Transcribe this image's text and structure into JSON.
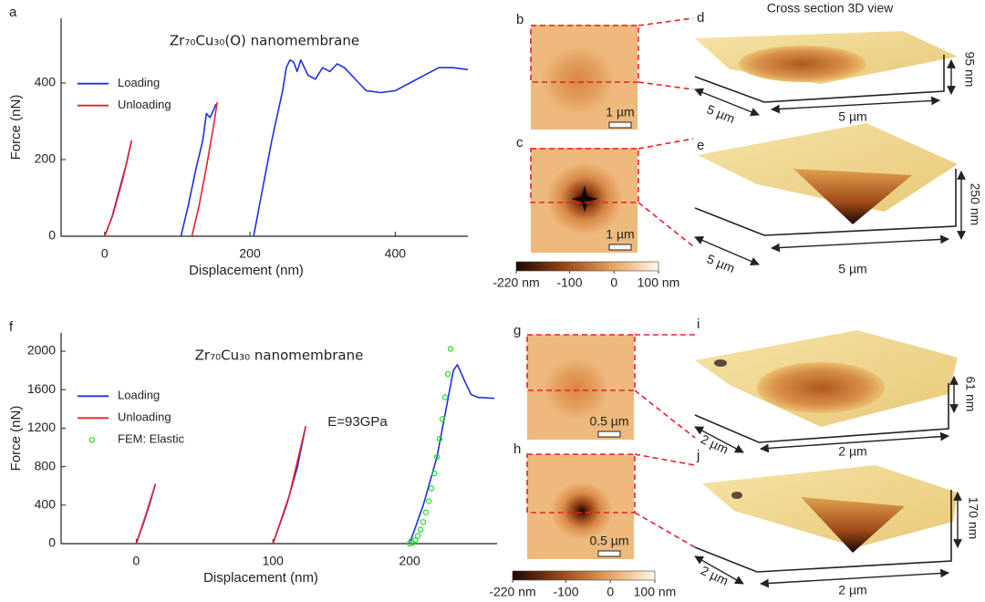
{
  "chart_data": [
    {
      "type": "line",
      "panel": "a",
      "title": "Zr₇₀Cu₃₀(O) nanomembrane",
      "xlabel": "Displacement (nm)",
      "ylabel": "Force (nN)",
      "xlim": [
        -60,
        500
      ],
      "xticks": [
        0,
        200,
        400
      ],
      "ylim": [
        0,
        569
      ],
      "yticks": [
        0,
        200,
        400
      ],
      "legend": "upper left",
      "series": [
        {
          "name": "Loading",
          "color": "#1f2fe0",
          "x": [
            0,
            10,
            20,
            30,
            37,
            null,
            105,
            115,
            125,
            135,
            140,
            145,
            150,
            153,
            null,
            205,
            215,
            230,
            245,
            250,
            255,
            260,
            265,
            270,
            280,
            290,
            300,
            310,
            320,
            330,
            340,
            350,
            360,
            380,
            400,
            420,
            440,
            460,
            480,
            500
          ],
          "values": [
            0,
            50,
            120,
            190,
            250,
            null,
            0,
            80,
            170,
            250,
            320,
            310,
            330,
            345,
            null,
            0,
            100,
            250,
            380,
            440,
            460,
            455,
            430,
            460,
            420,
            410,
            440,
            430,
            450,
            440,
            420,
            400,
            380,
            375,
            380,
            400,
            420,
            440,
            440,
            435
          ]
        },
        {
          "name": "Unloading",
          "color": "#e8202a",
          "x": [
            0,
            12,
            25,
            37,
            null,
            120,
            130,
            140,
            150,
            155
          ],
          "values": [
            0,
            60,
            150,
            250,
            null,
            0,
            80,
            180,
            290,
            350
          ]
        }
      ]
    },
    {
      "type": "line",
      "panel": "f",
      "title": "Zr₇₀Cu₃₀ nanomembrane",
      "xlabel": "Displacement (nm)",
      "ylabel": "Force (nN)",
      "annotation": "E=93GPa",
      "xlim": [
        -55,
        264
      ],
      "xticks": [
        0,
        100,
        200
      ],
      "ylim": [
        0,
        2190
      ],
      "yticks": [
        0,
        400,
        800,
        1200,
        1600,
        2000
      ],
      "legend": "upper left",
      "series": [
        {
          "name": "Loading",
          "color": "#1f2fe0",
          "x": [
            0,
            5,
            10,
            14,
            null,
            100,
            110,
            118,
            124,
            null,
            200,
            210,
            220,
            228,
            232,
            235,
            240,
            245,
            250,
            262
          ],
          "values": [
            0,
            200,
            420,
            620,
            null,
            0,
            400,
            800,
            1220,
            null,
            0,
            400,
            900,
            1500,
            1800,
            1860,
            1700,
            1550,
            1520,
            1510
          ]
        },
        {
          "name": "Unloading",
          "color": "#e8202a",
          "x": [
            0,
            7,
            14,
            null,
            100,
            112,
            124
          ],
          "values": [
            0,
            300,
            620,
            null,
            0,
            500,
            1220
          ]
        },
        {
          "name": "FEM: Elastic",
          "color": "#22dd22",
          "mode": "markers",
          "x": [
            200,
            202,
            204,
            206,
            208,
            210,
            212,
            214,
            216,
            218,
            220,
            222,
            224,
            226,
            228,
            230
          ],
          "values": [
            0,
            9,
            36,
            81,
            144,
            225,
            324,
            441,
            576,
            729,
            900,
            1089,
            1296,
            1521,
            1764,
            2025
          ]
        }
      ]
    }
  ],
  "afm_maps": [
    {
      "label": "b",
      "scale_bar": "1 µm"
    },
    {
      "label": "c",
      "scale_bar": "1 µm"
    },
    {
      "label": "g",
      "scale_bar": "0.5 µm"
    },
    {
      "label": "h",
      "scale_bar": "0.5 µm"
    }
  ],
  "colorbars": [
    {
      "lim": [
        -220,
        100
      ],
      "ticks": [
        {
          "value": -220,
          "label": "-220 nm"
        },
        -100,
        0,
        {
          "value": 100,
          "label": "100 nm"
        }
      ]
    },
    {
      "lim": [
        -220,
        100
      ],
      "ticks": [
        {
          "value": -220,
          "label": "-220 nm"
        },
        -100,
        0,
        {
          "value": 100,
          "label": "100 nm"
        }
      ]
    }
  ],
  "views_3d": {
    "title": "Cross section 3D view",
    "panels": [
      {
        "label": "d",
        "depth": "95 nm",
        "width_left": "5 µm",
        "width_bottom": "5 µm"
      },
      {
        "label": "e",
        "depth": "250 nm",
        "width_left": "5 µm",
        "width_bottom": "5 µm"
      },
      {
        "label": "i",
        "depth": "61 nm",
        "width_left": "2 µm",
        "width_bottom": "2 µm"
      },
      {
        "label": "j",
        "depth": "170 nm",
        "width_left": "2 µm",
        "width_bottom": "2 µm"
      }
    ]
  }
}
